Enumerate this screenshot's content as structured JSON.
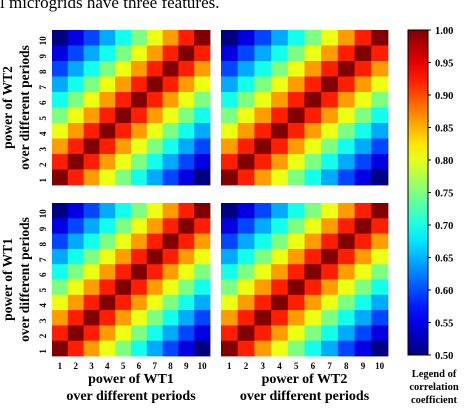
{
  "caption_fragment": "l microgrids have three features.",
  "chart_data": {
    "type": "heatmap",
    "panels": [
      {
        "row": 1,
        "col": 1,
        "ylabel": [
          "power of WT2",
          "over different periods"
        ],
        "xlabel": []
      },
      {
        "row": 1,
        "col": 2,
        "ylabel": [],
        "xlabel": []
      },
      {
        "row": 2,
        "col": 1,
        "ylabel": [
          "power of WT1",
          "over different periods"
        ],
        "xlabel": [
          "power of WT1",
          "over different periods"
        ]
      },
      {
        "row": 2,
        "col": 2,
        "ylabel": [],
        "xlabel": [
          "power of WT2",
          "over different periods"
        ]
      }
    ],
    "ticks": [
      "1",
      "2",
      "3",
      "4",
      "5",
      "6",
      "7",
      "8",
      "9",
      "10"
    ],
    "grid": false,
    "colorbar": {
      "min": 0.5,
      "max": 1.0,
      "tick_labels": [
        "1.00",
        "0.95",
        "0.90",
        "0.85",
        "0.80",
        "0.75",
        "0.70",
        "0.65",
        "0.60",
        "0.55",
        "0.50"
      ],
      "title": [
        "Legend of",
        "correlation",
        "coefficient"
      ],
      "colormap": "jet"
    },
    "description": "Each panel is a 10x10 matrix of correlation coefficients; values are ~1.00 on the diagonal and decrease toward ~0.50 at the far off-diagonal corners."
  }
}
